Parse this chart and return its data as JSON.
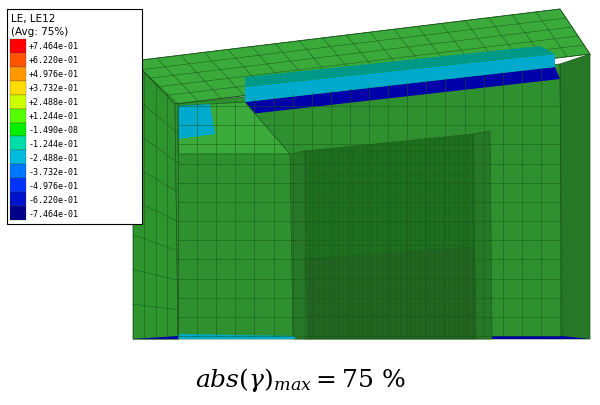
{
  "legend_title_line1": "LE, LE12",
  "legend_title_line2": "(Avg: 75%)",
  "legend_values": [
    "+7.464e-01",
    "+6.220e-01",
    "+4.976e-01",
    "+3.732e-01",
    "+2.488e-01",
    "+1.244e-01",
    "-1.490e-08",
    "-1.244e-01",
    "-2.488e-01",
    "-3.732e-01",
    "-4.976e-01",
    "-6.220e-01",
    "-7.464e-01"
  ],
  "legend_colors": [
    "#FF0000",
    "#FF5500",
    "#FF9900",
    "#FFDD00",
    "#CCFF00",
    "#55FF00",
    "#00EE00",
    "#00DDAA",
    "#00BBDD",
    "#0077FF",
    "#0033FF",
    "#0011CC",
    "#000088"
  ],
  "annotation_fontsize": 18,
  "bg_color": "#ffffff",
  "green_outer_top": "#3aaa3a",
  "green_left_face": "#2e952e",
  "green_front_face": "#2e902e",
  "green_right_face": "#267826",
  "green_inner_wall": "#267826",
  "green_inner_bottom_face": "#1e701e",
  "green_edge": "#1a551a",
  "blue_dark": "#0000aa",
  "blue_mid": "#0033cc",
  "cyan_col": "#00aacc",
  "teal_col": "#009988"
}
